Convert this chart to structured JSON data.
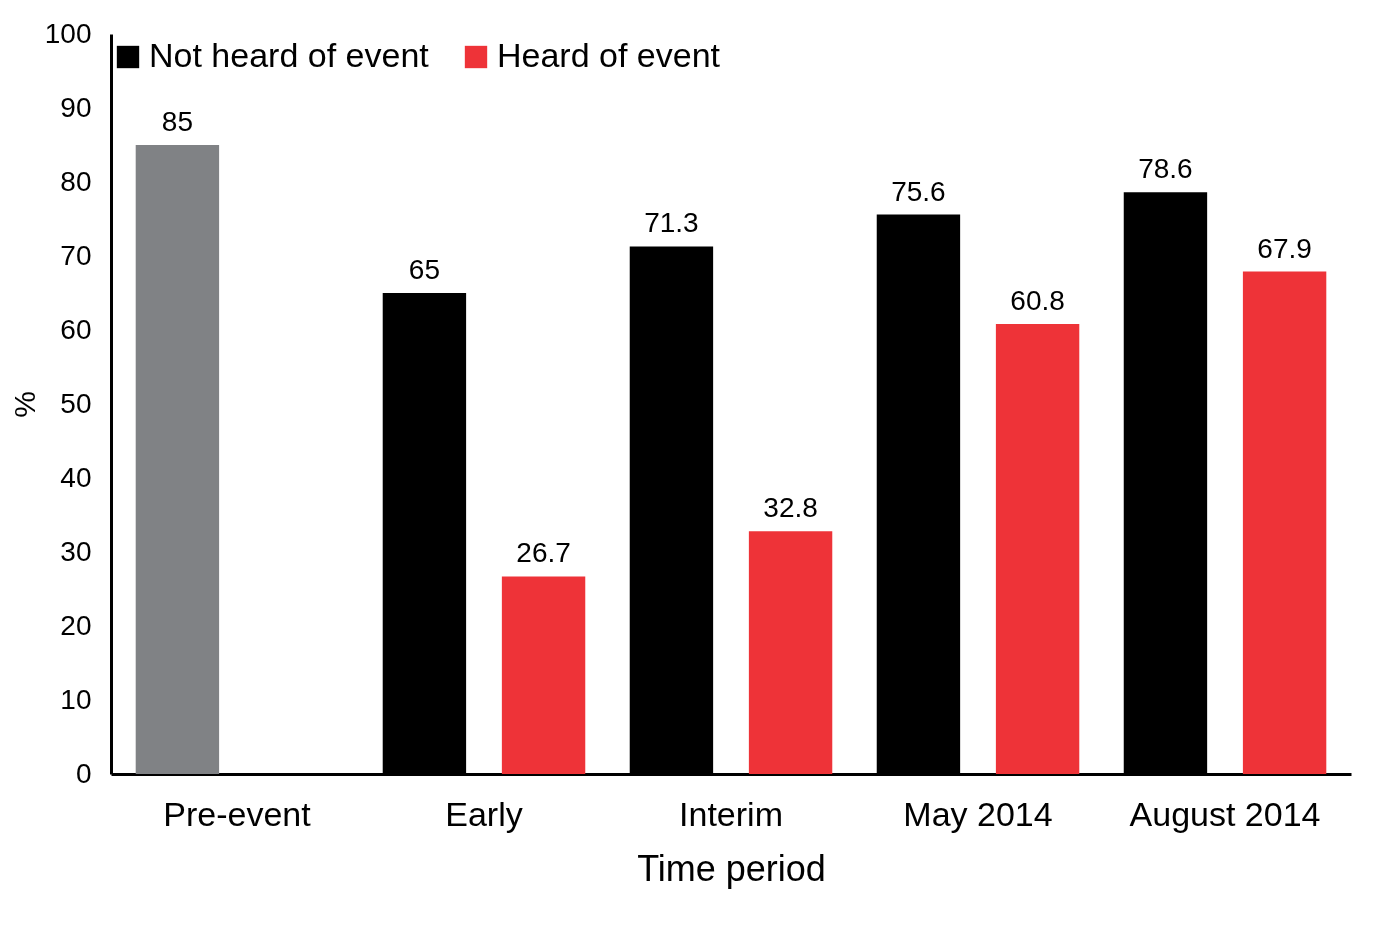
{
  "chart_data": {
    "type": "bar",
    "xlabel": "Time period",
    "ylabel": "%",
    "categories": [
      "Pre-event",
      "Early",
      "Interim",
      "May 2014",
      "August 2014"
    ],
    "series": [
      {
        "name": "Not heard of event",
        "color": "#000000",
        "colors": [
          "#808285",
          "#000000",
          "#000000",
          "#000000",
          "#000000"
        ],
        "values": [
          85,
          65,
          71.3,
          75.6,
          78.6
        ]
      },
      {
        "name": "Heard of event",
        "color": "#ee3338",
        "values": [
          null,
          26.7,
          32.8,
          60.8,
          67.9
        ]
      }
    ],
    "ylim": [
      0,
      100
    ],
    "yticks": [
      0,
      10,
      20,
      30,
      40,
      50,
      60,
      70,
      80,
      90,
      100
    ],
    "grid": false,
    "legend": "top",
    "data_labels": true
  }
}
